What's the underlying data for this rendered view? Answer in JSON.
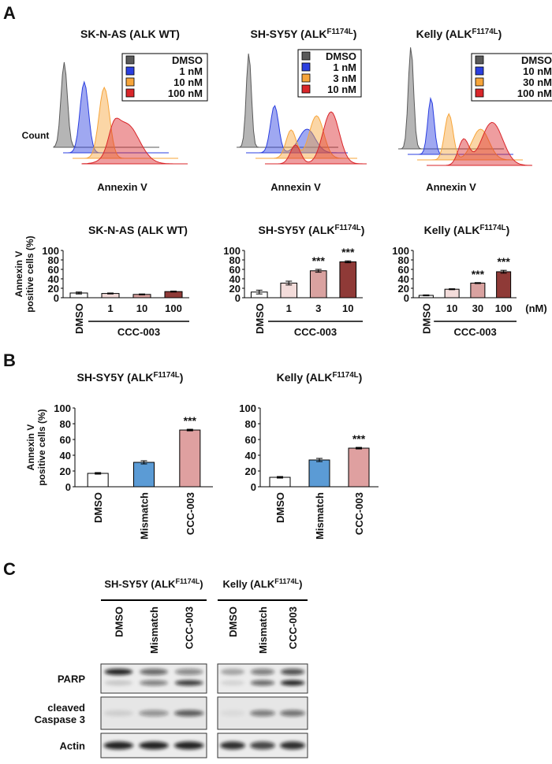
{
  "panel_letters": [
    "A",
    "B",
    "C"
  ],
  "flow": [
    {
      "title": {
        "text": "SK-N-AS (ALK WT)"
      },
      "xlabel": "Annexin V",
      "ylabel": "Count",
      "series": [
        {
          "name": "DMSO",
          "color": "#5a5a5a"
        },
        {
          "name": "1 nM",
          "color": "#2b3fe0"
        },
        {
          "name": "10 nM",
          "color": "#f7a53a"
        },
        {
          "name": "100 nM",
          "color": "#d9262a"
        }
      ]
    },
    {
      "title": {
        "text": "SH-SY5Y (ALK",
        "sup": "F1174L",
        "end": ")"
      },
      "xlabel": "Annexin V",
      "series": [
        {
          "name": "DMSO",
          "color": "#5a5a5a"
        },
        {
          "name": "1 nM",
          "color": "#2b3fe0"
        },
        {
          "name": "3 nM",
          "color": "#f7a53a"
        },
        {
          "name": "10 nM",
          "color": "#d9262a"
        }
      ]
    },
    {
      "title": {
        "text": "Kelly (ALK",
        "sup": "F1174L",
        "end": ")"
      },
      "xlabel": "Annexin V",
      "series": [
        {
          "name": "DMSO",
          "color": "#5a5a5a"
        },
        {
          "name": "10 nM",
          "color": "#2b3fe0"
        },
        {
          "name": "30 nM",
          "color": "#f7a53a"
        },
        {
          "name": "100 nM",
          "color": "#d9262a"
        }
      ]
    }
  ],
  "chart_data": [
    {
      "type": "bar",
      "title": {
        "text": "SK-N-AS (ALK WT)"
      },
      "ylabel": [
        "Annexin V",
        "positive cells (%)"
      ],
      "categories": [
        "DMSO",
        "1",
        "10",
        "100"
      ],
      "values": [
        10,
        9,
        7,
        13
      ],
      "errors": [
        2,
        1,
        1,
        1
      ],
      "colors": [
        "#ffffff",
        "#f3dcda",
        "#d9a2a0",
        "#8f3a37"
      ],
      "significance": [
        null,
        null,
        null,
        null
      ],
      "group_label": "CCC-003",
      "ylim": [
        0,
        100
      ],
      "yticks": [
        0,
        20,
        40,
        60,
        80,
        100
      ]
    },
    {
      "type": "bar",
      "title": {
        "text": "SH-SY5Y (ALK",
        "sup": "F1174L",
        "end": ")"
      },
      "categories": [
        "DMSO",
        "1",
        "3",
        "10"
      ],
      "values": [
        12,
        31,
        57,
        76
      ],
      "errors": [
        4,
        4,
        3,
        2
      ],
      "colors": [
        "#ffffff",
        "#f3dcda",
        "#d9a2a0",
        "#8f3a37"
      ],
      "significance": [
        null,
        null,
        "***",
        "***"
      ],
      "group_label": "CCC-003",
      "ylim": [
        0,
        100
      ],
      "yticks": [
        0,
        20,
        40,
        60,
        80,
        100
      ]
    },
    {
      "type": "bar",
      "title": {
        "text": "Kelly (ALK",
        "sup": "F1174L",
        "end": ")"
      },
      "categories": [
        "DMSO",
        "10",
        "30",
        "100"
      ],
      "values": [
        5,
        18,
        31,
        55
      ],
      "errors": [
        1,
        1,
        1,
        3
      ],
      "colors": [
        "#ffffff",
        "#f3dcda",
        "#d9a2a0",
        "#8f3a37"
      ],
      "significance": [
        null,
        null,
        "***",
        "***"
      ],
      "group_label": "CCC-003",
      "unit": "(nM)",
      "ylim": [
        0,
        100
      ],
      "yticks": [
        0,
        20,
        40,
        60,
        80,
        100
      ]
    },
    {
      "type": "bar",
      "title": {
        "text": "SH-SY5Y (ALK",
        "sup": "F1174L",
        "end": ")"
      },
      "ylabel": [
        "Annexin V",
        "positive cells (%)"
      ],
      "categories": [
        "DMSO",
        "Mismatch",
        "CCC-003"
      ],
      "values": [
        17,
        31,
        72
      ],
      "errors": [
        1,
        2,
        1
      ],
      "colors": [
        "#ffffff",
        "#5b9bd5",
        "#dfa0a0"
      ],
      "significance": [
        null,
        null,
        "***"
      ],
      "ylim": [
        0,
        100
      ],
      "yticks": [
        0,
        20,
        40,
        60,
        80,
        100
      ]
    },
    {
      "type": "bar",
      "title": {
        "text": "Kelly (ALK",
        "sup": "F1174L",
        "end": ")"
      },
      "categories": [
        "DMSO",
        "Mismatch",
        "CCC-003"
      ],
      "values": [
        12,
        34,
        49
      ],
      "errors": [
        1,
        2,
        1
      ],
      "colors": [
        "#ffffff",
        "#5b9bd5",
        "#dfa0a0"
      ],
      "significance": [
        null,
        null,
        "***"
      ],
      "ylim": [
        0,
        100
      ],
      "yticks": [
        0,
        20,
        40,
        60,
        80,
        100
      ]
    }
  ],
  "blot": {
    "groups": [
      {
        "title": {
          "text": "SH-SY5Y (ALK",
          "sup": "F1174L",
          "end": ")"
        },
        "samples": [
          "DMSO",
          "Mismatch",
          "CCC-003"
        ]
      },
      {
        "title": {
          "text": "Kelly (ALK",
          "sup": "F1174L",
          "end": ")"
        },
        "samples": [
          "DMSO",
          "Mismatch",
          "CCC-003"
        ]
      }
    ],
    "rows": [
      [
        "PARP"
      ],
      [
        "cleaved",
        "Caspase 3"
      ],
      [
        "Actin"
      ]
    ]
  }
}
